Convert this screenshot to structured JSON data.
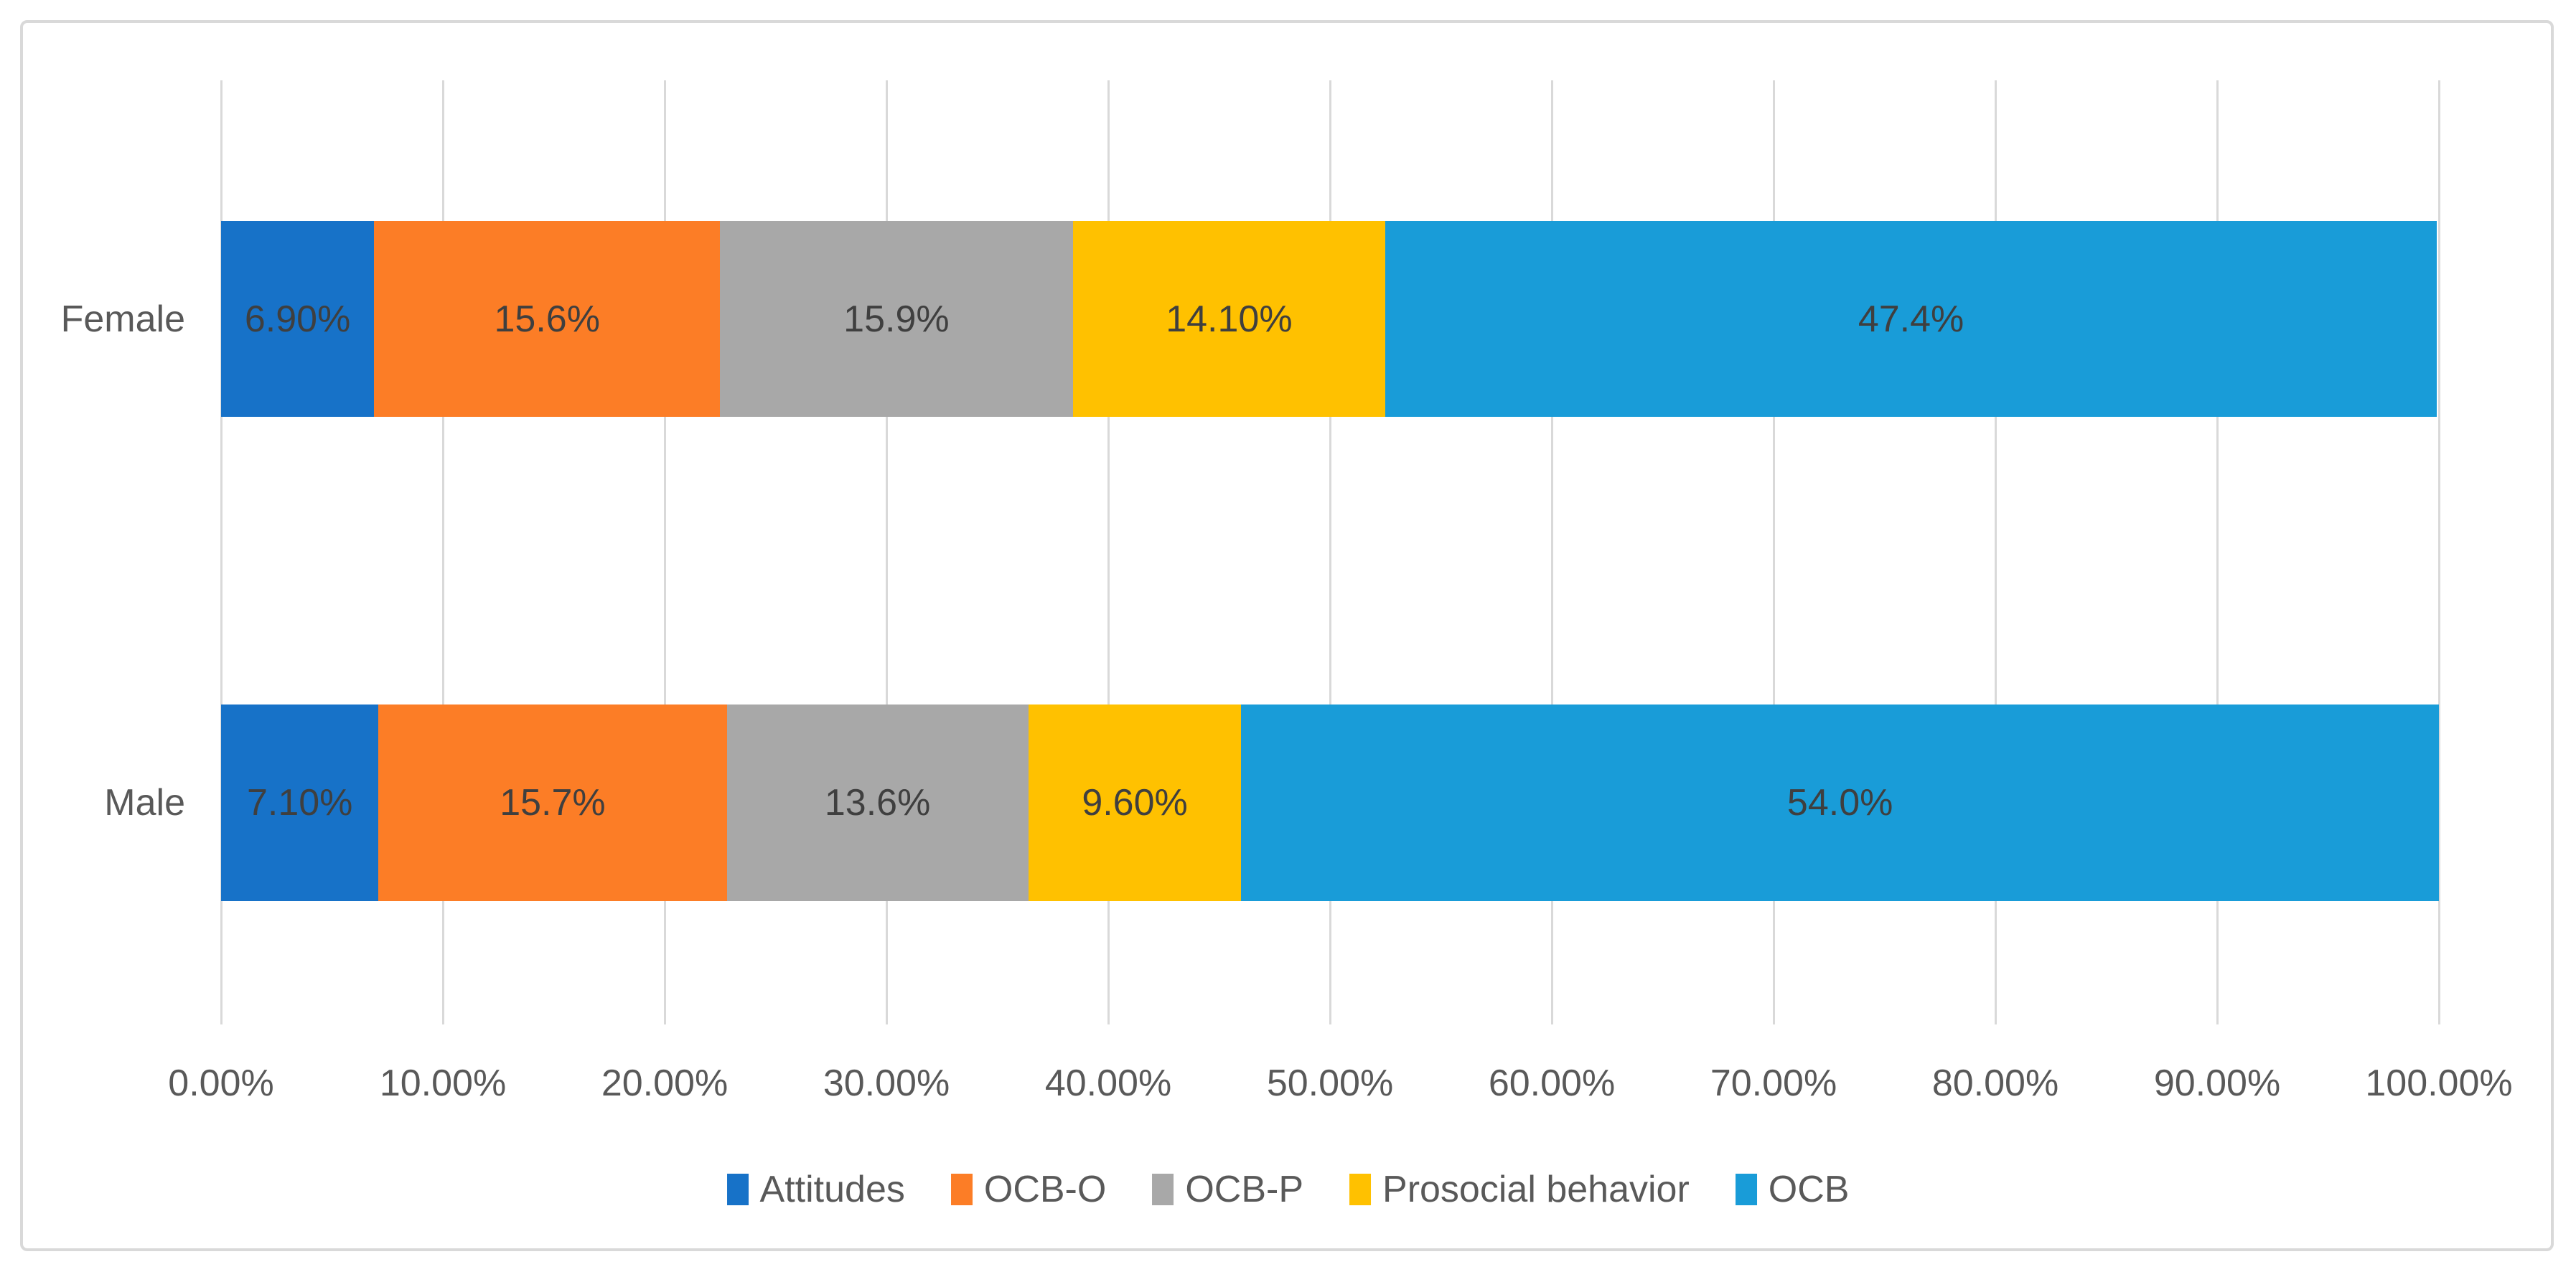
{
  "chart_data": {
    "type": "bar",
    "variant": "horizontal-stacked",
    "title": "",
    "categories": [
      "Female",
      "Male"
    ],
    "series": [
      {
        "name": "Attitudes",
        "color": "#1772c8",
        "values": [
          6.9,
          7.1
        ],
        "labels": [
          "6.90%",
          "7.10%"
        ]
      },
      {
        "name": "OCB-O",
        "color": "#fc7d26",
        "values": [
          15.6,
          15.7
        ],
        "labels": [
          "15.6%",
          "15.7%"
        ]
      },
      {
        "name": "OCB-P",
        "color": "#a8a8a8",
        "values": [
          15.9,
          13.6
        ],
        "labels": [
          "15.9%",
          "13.6%"
        ]
      },
      {
        "name": "Prosocial behavior",
        "color": "#ffc100",
        "values": [
          14.1,
          9.6
        ],
        "labels": [
          "14.10%",
          "9.60%"
        ]
      },
      {
        "name": "OCB",
        "color": "#199cd8",
        "values": [
          47.4,
          54.0
        ],
        "labels": [
          "47.4%",
          "54.0%"
        ]
      }
    ],
    "x_ticks": [
      "0.00%",
      "10.00%",
      "20.00%",
      "30.00%",
      "40.00%",
      "50.00%",
      "60.00%",
      "70.00%",
      "80.00%",
      "90.00%",
      "100.00%"
    ],
    "xlim": [
      0,
      100
    ],
    "grid": true,
    "legend_position": "bottom",
    "colors": {
      "grid": "#d9d9d9",
      "frame_border": "#d9d9d9",
      "bar_label_text": "#3f3f3f",
      "axis_text": "#595959",
      "background": "#ffffff"
    }
  }
}
